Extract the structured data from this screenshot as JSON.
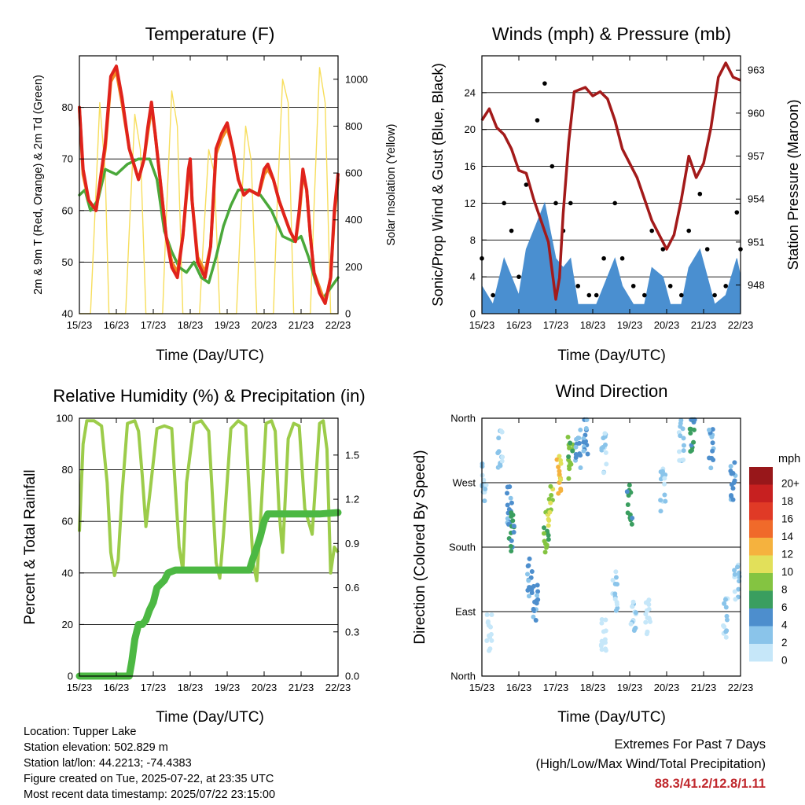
{
  "colors": {
    "temp_2m": "#e0231c",
    "temp_9m": "#f08a24",
    "dewpoint": "#4aa83a",
    "solar": "#f7de5c",
    "sonic_wind": "#4a8fd0",
    "gust": "#000000",
    "pressure": "#a31a1a",
    "rh": "#9ccc4a",
    "precip": "#4cb843"
  },
  "panels": {
    "temperature": {
      "title": "Temperature (F)",
      "ylabel_left": "2m & 9m T (Red, Orange) & 2m Td (Green)",
      "ylabel_right": "Solar Insolation (Yellow)",
      "xlabel": "Time (Day/UTC)"
    },
    "winds": {
      "title": "Winds (mph) & Pressure (mb)",
      "ylabel_left": "Sonic/Prop Wind & Gust (Blue, Black)",
      "ylabel_right": "Station Pressure (Maroon)",
      "xlabel": "Time (Day/UTC)"
    },
    "humidity": {
      "title": "Relative Humidity (%) & Precipitation (in)",
      "ylabel_left": "Percent & Total Rainfall",
      "xlabel": "Time (Day/UTC)"
    },
    "direction": {
      "title": "Wind Direction",
      "ylabel_left": "Direction (Colored By Speed)",
      "xlabel": "Time (Day/UTC)",
      "colorbar_title": "mph"
    }
  },
  "info": {
    "location": "Location: Tupper Lake",
    "elevation": "Station elevation: 502.829 m",
    "latlon": "Station lat/lon: 44.2213; -74.4383",
    "created": "Figure created on Tue, 2025-07-22, at 23:35 UTC",
    "recent": "Most recent data timestamp: 2025/07/22 23:15:00"
  },
  "extremes": {
    "title": "Extremes For Past 7 Days",
    "subtitle": "(High/Low/Max Wind/Total Precipitation)",
    "values": "88.3/41.2/12.8/1.11"
  },
  "chart_data": [
    {
      "id": "temperature",
      "type": "line",
      "x_ticks": [
        "15/23",
        "16/23",
        "17/23",
        "18/23",
        "19/23",
        "20/23",
        "21/23",
        "22/23"
      ],
      "x_range_days": [
        0,
        7
      ],
      "y_left": {
        "range": [
          40,
          90
        ],
        "ticks": [
          40,
          50,
          60,
          70,
          80
        ]
      },
      "y_right": {
        "range": [
          0,
          1100
        ],
        "ticks": [
          0,
          200,
          400,
          600,
          800,
          1000
        ]
      },
      "grid": true,
      "series": [
        {
          "axis": "left",
          "color_key": "temp_2m",
          "x": [
            0,
            0.1,
            0.25,
            0.45,
            0.7,
            0.85,
            1.0,
            1.15,
            1.35,
            1.6,
            1.75,
            1.85,
            1.95,
            2.05,
            2.2,
            2.35,
            2.5,
            2.65,
            2.8,
            2.95,
            3.0,
            3.05,
            3.2,
            3.4,
            3.55,
            3.7,
            3.85,
            4.0,
            4.15,
            4.3,
            4.45,
            4.6,
            4.85,
            5.0,
            5.1,
            5.25,
            5.4,
            5.55,
            5.7,
            5.85,
            5.95,
            6.05,
            6.15,
            6.25,
            6.35,
            6.5,
            6.65,
            6.8,
            6.9,
            7.0
          ],
          "y": [
            80,
            68,
            62,
            60,
            73,
            86,
            88,
            82,
            72,
            66,
            70,
            76,
            81,
            75,
            65,
            55,
            49,
            47,
            55,
            68,
            70,
            62,
            50,
            47,
            53,
            72,
            75,
            77,
            72,
            66,
            63,
            64,
            63,
            68,
            69,
            66,
            62,
            59,
            56,
            54,
            60,
            68,
            64,
            55,
            48,
            44,
            42,
            47,
            60,
            67
          ]
        },
        {
          "axis": "left",
          "color_key": "temp_9m",
          "x": [
            0,
            0.1,
            0.25,
            0.45,
            0.7,
            0.85,
            1.0,
            1.15,
            1.35,
            1.6,
            1.75,
            1.85,
            1.95,
            2.05,
            2.2,
            2.35,
            2.5,
            2.65,
            2.8,
            2.95,
            3.0,
            3.05,
            3.2,
            3.4,
            3.55,
            3.7,
            3.85,
            4.0,
            4.15,
            4.3,
            4.45,
            4.6,
            4.85,
            5.0,
            5.1,
            5.25,
            5.4,
            5.55,
            5.7,
            5.85,
            5.95,
            6.05,
            6.15,
            6.25,
            6.35,
            6.5,
            6.65,
            6.8,
            6.9,
            7.0
          ],
          "y": [
            80,
            67,
            62,
            60,
            72,
            85,
            87,
            81,
            72,
            66,
            70,
            75,
            80,
            75,
            65,
            55,
            50,
            48,
            55,
            67,
            69,
            62,
            51,
            48,
            53,
            71,
            74,
            76,
            72,
            66,
            63,
            64,
            63,
            67,
            68,
            66,
            62,
            59,
            56,
            54,
            59,
            67,
            64,
            55,
            48,
            45,
            42,
            47,
            59,
            66
          ]
        },
        {
          "axis": "left",
          "color_key": "dewpoint",
          "x": [
            0,
            0.15,
            0.3,
            0.5,
            0.7,
            1.0,
            1.3,
            1.6,
            1.9,
            2.1,
            2.3,
            2.5,
            2.7,
            2.9,
            3.1,
            3.3,
            3.5,
            3.7,
            3.9,
            4.1,
            4.3,
            4.6,
            4.9,
            5.2,
            5.5,
            5.8,
            6.0,
            6.2,
            6.4,
            6.6,
            6.8,
            7.0
          ],
          "y": [
            63,
            64,
            60,
            62,
            68,
            67,
            69,
            70,
            70,
            66,
            56,
            52,
            49,
            48,
            50,
            47,
            46,
            51,
            57,
            61,
            64,
            64,
            63,
            60,
            55,
            54,
            55,
            51,
            46,
            43,
            45,
            47
          ]
        },
        {
          "axis": "right",
          "color_key": "solar",
          "x": [
            0,
            0.3,
            0.4,
            0.55,
            0.7,
            0.8,
            1.25,
            1.35,
            1.5,
            1.65,
            1.8,
            2.25,
            2.35,
            2.5,
            2.65,
            2.8,
            3.25,
            3.35,
            3.5,
            3.65,
            3.8,
            4.25,
            4.35,
            4.5,
            4.65,
            4.8,
            5.25,
            5.35,
            5.5,
            5.65,
            5.8,
            6.25,
            6.35,
            6.5,
            6.65,
            6.8,
            7.0
          ],
          "y": [
            0,
            0,
            350,
            900,
            600,
            0,
            0,
            350,
            850,
            700,
            0,
            0,
            400,
            950,
            800,
            0,
            0,
            300,
            700,
            600,
            0,
            0,
            350,
            800,
            650,
            0,
            0,
            450,
            1000,
            900,
            0,
            0,
            450,
            1050,
            900,
            0,
            0
          ]
        }
      ]
    },
    {
      "id": "winds",
      "type": "line",
      "x_ticks": [
        "15/23",
        "16/23",
        "17/23",
        "18/23",
        "19/23",
        "20/23",
        "21/23",
        "22/23"
      ],
      "x_range_days": [
        0,
        7
      ],
      "y_left": {
        "range": [
          0,
          28
        ],
        "ticks": [
          0,
          4,
          8,
          12,
          16,
          20,
          24
        ]
      },
      "y_right": {
        "range": [
          946,
          964
        ],
        "ticks": [
          948,
          951,
          954,
          957,
          960,
          963
        ]
      },
      "grid": true,
      "series": [
        {
          "axis": "left",
          "color_key": "gust",
          "type": "scatter",
          "x": [
            0,
            0.3,
            0.6,
            0.8,
            1.0,
            1.2,
            1.5,
            1.7,
            1.9,
            2.0,
            2.2,
            2.4,
            2.6,
            2.9,
            3.1,
            3.3,
            3.6,
            3.8,
            4.1,
            4.4,
            4.6,
            4.9,
            5.1,
            5.4,
            5.6,
            5.9,
            6.1,
            6.3,
            6.6,
            6.9,
            7.0
          ],
          "y": [
            6,
            2,
            12,
            9,
            4,
            14,
            21,
            25,
            16,
            12,
            9,
            12,
            3,
            2,
            2,
            6,
            12,
            6,
            3,
            2,
            9,
            7,
            3,
            2,
            9,
            13,
            7,
            2,
            3,
            11,
            7
          ]
        },
        {
          "axis": "left",
          "color_key": "sonic_wind",
          "x": [
            0,
            0.3,
            0.6,
            0.8,
            1.0,
            1.2,
            1.5,
            1.7,
            1.9,
            2.0,
            2.2,
            2.4,
            2.6,
            2.9,
            3.1,
            3.3,
            3.6,
            3.8,
            4.1,
            4.4,
            4.6,
            4.9,
            5.1,
            5.4,
            5.6,
            5.9,
            6.1,
            6.3,
            6.6,
            6.9,
            7.0
          ],
          "y": [
            3,
            1,
            6,
            4,
            2,
            7,
            10,
            12,
            8,
            6,
            5,
            6,
            1,
            1,
            1,
            3,
            6,
            3,
            1,
            1,
            5,
            4,
            1,
            1,
            5,
            7,
            4,
            1,
            2,
            6,
            4
          ]
        },
        {
          "axis": "right",
          "color_key": "pressure",
          "x": [
            0,
            0.2,
            0.4,
            0.6,
            0.8,
            1.0,
            1.2,
            1.4,
            1.6,
            1.8,
            1.9,
            2.0,
            2.1,
            2.2,
            2.35,
            2.5,
            2.8,
            3.0,
            3.2,
            3.4,
            3.6,
            3.8,
            4.0,
            4.2,
            4.4,
            4.6,
            4.8,
            5.0,
            5.2,
            5.4,
            5.6,
            5.8,
            6.0,
            6.2,
            6.4,
            6.6,
            6.8,
            7.0
          ],
          "y": [
            959.5,
            960.3,
            959.0,
            958.5,
            957.5,
            956.0,
            955.8,
            954.0,
            952.5,
            951.0,
            949.0,
            947.0,
            948.5,
            953.0,
            958.0,
            961.5,
            961.8,
            961.2,
            961.5,
            961.0,
            959.5,
            957.5,
            956.5,
            955.5,
            954.0,
            952.5,
            951.5,
            950.5,
            951.5,
            954.0,
            957.0,
            955.5,
            956.5,
            959.0,
            962.5,
            963.5,
            962.5,
            962.3
          ]
        }
      ]
    },
    {
      "id": "humidity",
      "type": "line",
      "x_ticks": [
        "15/23",
        "16/23",
        "17/23",
        "18/23",
        "19/23",
        "20/23",
        "21/23",
        "22/23"
      ],
      "x_range_days": [
        0,
        7
      ],
      "y_left": {
        "range": [
          0,
          100
        ],
        "ticks": [
          0,
          20,
          40,
          60,
          80,
          100
        ]
      },
      "y_right": {
        "range": [
          0,
          1.75
        ],
        "ticks": [
          0.0,
          0.3,
          0.6,
          0.9,
          1.2,
          1.5
        ]
      },
      "grid": true,
      "series": [
        {
          "axis": "left",
          "color_key": "rh",
          "x": [
            0,
            0.1,
            0.2,
            0.4,
            0.6,
            0.75,
            0.85,
            0.95,
            1.05,
            1.15,
            1.3,
            1.5,
            1.6,
            1.7,
            1.8,
            1.9,
            2.1,
            2.3,
            2.5,
            2.6,
            2.7,
            2.8,
            2.9,
            3.1,
            3.3,
            3.5,
            3.6,
            3.7,
            3.8,
            3.9,
            4.1,
            4.3,
            4.5,
            4.6,
            4.7,
            4.8,
            4.9,
            5.05,
            5.2,
            5.3,
            5.4,
            5.5,
            5.65,
            5.8,
            5.95,
            6.1,
            6.3,
            6.5,
            6.6,
            6.7,
            6.8,
            6.9,
            7.0
          ],
          "y": [
            56,
            90,
            99,
            99,
            97,
            75,
            48,
            39,
            45,
            70,
            98,
            99,
            95,
            78,
            58,
            70,
            96,
            97,
            96,
            72,
            50,
            41,
            75,
            98,
            99,
            95,
            70,
            44,
            38,
            55,
            96,
            99,
            97,
            70,
            44,
            37,
            60,
            98,
            99,
            95,
            65,
            48,
            92,
            98,
            97,
            65,
            55,
            98,
            99,
            88,
            40,
            50,
            48
          ]
        },
        {
          "axis": "right",
          "color_key": "precip",
          "x": [
            0,
            1.35,
            1.42,
            1.5,
            1.6,
            1.7,
            1.8,
            1.9,
            2.0,
            2.1,
            2.3,
            2.4,
            2.6,
            3.0,
            4.0,
            4.6,
            4.7,
            4.8,
            4.9,
            5.0,
            5.1,
            5.5,
            6.0,
            6.5,
            7.0
          ],
          "y": [
            0,
            0,
            0.1,
            0.25,
            0.35,
            0.35,
            0.38,
            0.45,
            0.5,
            0.6,
            0.65,
            0.7,
            0.72,
            0.72,
            0.72,
            0.72,
            0.8,
            0.87,
            0.95,
            1.05,
            1.1,
            1.1,
            1.1,
            1.1,
            1.11
          ]
        }
      ]
    },
    {
      "id": "direction",
      "type": "scatter",
      "x_ticks": [
        "15/23",
        "16/23",
        "17/23",
        "18/23",
        "19/23",
        "20/23",
        "21/23",
        "22/23"
      ],
      "x_range_days": [
        0,
        7
      ],
      "y_ticks": [
        "North",
        "East",
        "South",
        "West",
        "North"
      ],
      "y_range_deg": [
        0,
        360
      ],
      "grid": true,
      "colorbar": {
        "labels": [
          "0",
          "2",
          "4",
          "6",
          "8",
          "10",
          "12",
          "14",
          "16",
          "18",
          "20+"
        ],
        "colors": [
          "#c6e7f9",
          "#8ac4ea",
          "#4d8ecd",
          "#3a9e5f",
          "#84c441",
          "#e2e05a",
          "#f5b23e",
          "#f06a2a",
          "#e03a26",
          "#c72020",
          "#98171a"
        ]
      },
      "clusters": [
        {
          "x": 0.05,
          "dir": 270,
          "speed": 2
        },
        {
          "x": 0.2,
          "dir": 60,
          "speed": 0
        },
        {
          "x": 0.5,
          "dir": 320,
          "speed": 2
        },
        {
          "x": 0.75,
          "dir": 240,
          "speed": 4
        },
        {
          "x": 0.8,
          "dir": 200,
          "speed": 6
        },
        {
          "x": 1.3,
          "dir": 140,
          "speed": 4
        },
        {
          "x": 1.45,
          "dir": 100,
          "speed": 4
        },
        {
          "x": 1.75,
          "dir": 200,
          "speed": 8
        },
        {
          "x": 1.85,
          "dir": 240,
          "speed": 10
        },
        {
          "x": 2.1,
          "dir": 285,
          "speed": 12
        },
        {
          "x": 2.4,
          "dir": 305,
          "speed": 8
        },
        {
          "x": 2.6,
          "dir": 320,
          "speed": 4
        },
        {
          "x": 2.8,
          "dir": 340,
          "speed": 4
        },
        {
          "x": 3.3,
          "dir": 310,
          "speed": 2
        },
        {
          "x": 3.3,
          "dir": 60,
          "speed": 0
        },
        {
          "x": 3.6,
          "dir": 120,
          "speed": 2
        },
        {
          "x": 4.0,
          "dir": 240,
          "speed": 6
        },
        {
          "x": 4.1,
          "dir": 90,
          "speed": 2
        },
        {
          "x": 4.5,
          "dir": 80,
          "speed": 0
        },
        {
          "x": 4.9,
          "dir": 260,
          "speed": 2
        },
        {
          "x": 5.4,
          "dir": 330,
          "speed": 2
        },
        {
          "x": 5.7,
          "dir": 340,
          "speed": 6
        },
        {
          "x": 6.2,
          "dir": 320,
          "speed": 4
        },
        {
          "x": 6.6,
          "dir": 80,
          "speed": 2
        },
        {
          "x": 6.8,
          "dir": 270,
          "speed": 4
        },
        {
          "x": 6.9,
          "dir": 130,
          "speed": 2
        }
      ]
    }
  ]
}
